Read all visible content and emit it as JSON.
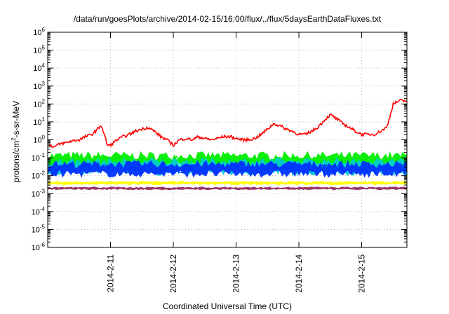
{
  "chart_data": {
    "type": "line",
    "title": "/data/run/goesPlots/archive/2014-02-15/16:00/flux/../flux/5daysEarthDataFluxes.txt",
    "xlabel": "Coordinated Universal Time (UTC)",
    "ylabel": {
      "base": "protons/cm",
      "sup": "2",
      "rest": "-s-sr-MeV"
    },
    "y_scale": "log",
    "ylim": [
      1e-06,
      1000000.0
    ],
    "y_ticks": [
      {
        "value": -6,
        "base": "10",
        "exp": "-6"
      },
      {
        "value": -5,
        "base": "10",
        "exp": "-5"
      },
      {
        "value": -4,
        "base": "10",
        "exp": "-4"
      },
      {
        "value": -3,
        "base": "10",
        "exp": "-3"
      },
      {
        "value": -2,
        "base": "10",
        "exp": "-2"
      },
      {
        "value": -1,
        "base": "10",
        "exp": "-1"
      },
      {
        "value": 0,
        "base": "10",
        "exp": "0"
      },
      {
        "value": 1,
        "base": "10",
        "exp": "1"
      },
      {
        "value": 2,
        "base": "10",
        "exp": "2"
      },
      {
        "value": 3,
        "base": "10",
        "exp": "3"
      },
      {
        "value": 4,
        "base": "10",
        "exp": "4"
      },
      {
        "value": 5,
        "base": "10",
        "exp": "5"
      },
      {
        "value": 6,
        "base": "10",
        "exp": "6"
      }
    ],
    "xlim": [
      0,
      5.72
    ],
    "x_unit": "days since 2014-02-10 00:00 UTC",
    "x_ticks": [
      {
        "value": 1,
        "label": "2014-2-11"
      },
      {
        "value": 2,
        "label": "2014-2-12"
      },
      {
        "value": 3,
        "label": "2014-2-13"
      },
      {
        "value": 4,
        "label": "2014-2-14"
      },
      {
        "value": 5,
        "label": "2014-2-15"
      }
    ],
    "grid": true,
    "legend": "none",
    "series": [
      {
        "color": "#ff0000",
        "width": 1.6,
        "noise": 0.08,
        "x": [
          0,
          0.1,
          0.2,
          0.3,
          0.4,
          0.5,
          0.6,
          0.7,
          0.8,
          0.85,
          0.9,
          0.95,
          1.0,
          1.1,
          1.2,
          1.3,
          1.4,
          1.5,
          1.6,
          1.7,
          1.8,
          1.9,
          2.0,
          2.1,
          2.2,
          2.3,
          2.4,
          2.5,
          2.6,
          2.7,
          2.8,
          2.9,
          3.0,
          3.1,
          3.2,
          3.3,
          3.4,
          3.5,
          3.6,
          3.7,
          3.8,
          3.9,
          4.0,
          4.1,
          4.2,
          4.3,
          4.4,
          4.5,
          4.6,
          4.7,
          4.8,
          4.9,
          5.0,
          5.1,
          5.2,
          5.3,
          5.4,
          5.45,
          5.5,
          5.6,
          5.72
        ],
        "y": [
          0.6,
          0.4,
          0.6,
          0.7,
          0.9,
          1.0,
          1.5,
          2.0,
          4.0,
          7.0,
          2.0,
          0.5,
          0.5,
          1.0,
          1.5,
          2.0,
          3.0,
          4.0,
          5.0,
          3.0,
          1.5,
          1.0,
          0.5,
          1.0,
          1.2,
          1.0,
          1.5,
          1.2,
          1.0,
          1.2,
          1.5,
          1.5,
          1.2,
          1.0,
          1.0,
          1.2,
          2.0,
          4.0,
          8.0,
          6.0,
          4.0,
          3.0,
          2.0,
          2.0,
          3.0,
          5.0,
          12.0,
          25.0,
          15.0,
          8.0,
          5.0,
          3.0,
          2.0,
          2.0,
          2.0,
          3.0,
          5.0,
          20.0,
          100.0,
          150.0,
          150.0
        ]
      },
      {
        "color": "#00ee00",
        "band": [
          0.02,
          0.22
        ]
      },
      {
        "color": "#00cccc",
        "band": [
          0.01,
          0.1
        ]
      },
      {
        "color": "#0033ff",
        "band": [
          0.008,
          0.07
        ]
      },
      {
        "color": "#ffff00",
        "band": [
          0.003,
          0.005
        ]
      },
      {
        "color": "#993366",
        "band": [
          0.0016,
          0.0024
        ]
      }
    ]
  }
}
